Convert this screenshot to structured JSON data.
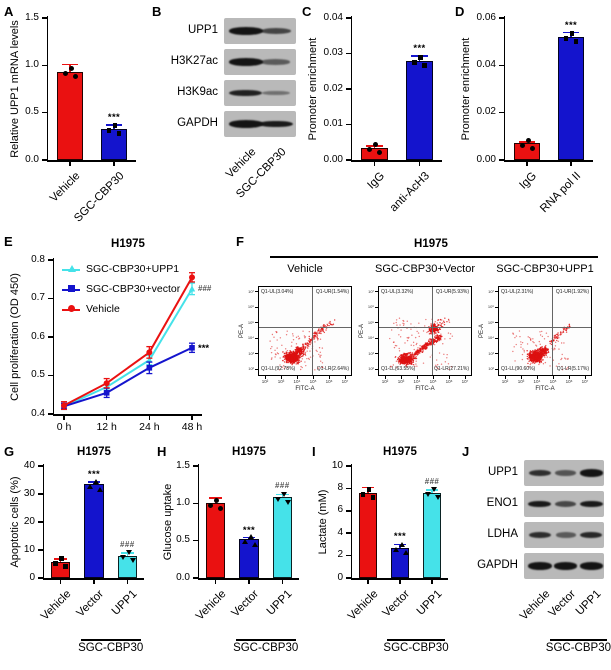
{
  "panels": {
    "A": "A",
    "B": "B",
    "C": "C",
    "D": "D",
    "E": "E",
    "F": "F",
    "G": "G",
    "H": "H",
    "I": "I",
    "J": "J"
  },
  "colors": {
    "red": "#ea1111",
    "blue": "#1414cd",
    "cyan": "#45e2e9",
    "sig": "#000000",
    "hash": "#555555",
    "blot_bg": "#b9b9b9",
    "band": "#141414",
    "flow_dot": "#dd1111",
    "axis": "#000000"
  },
  "chart_data": [
    {
      "panel": "A",
      "type": "bar",
      "title": "",
      "ylabel": "Relative UPP1 mRNA levels",
      "categories": [
        "Vehicle",
        "SGC-CBP30"
      ],
      "values": [
        0.93,
        0.33
      ],
      "errors": [
        0.08,
        0.04
      ],
      "bar_colors": [
        "red",
        "blue"
      ],
      "markers": [
        "circle",
        "square"
      ],
      "ylim": [
        0,
        1.5
      ],
      "yticks": [
        0,
        0.5,
        1,
        1.5
      ],
      "ytick_labels": [
        "0.0",
        "0.5",
        "1.0",
        "1.5"
      ],
      "sig": [
        "",
        "***"
      ]
    },
    {
      "panel": "C",
      "type": "bar",
      "title": "",
      "ylabel": "Promoter enrichment",
      "categories": [
        "IgG",
        "anti-AcH3"
      ],
      "values": [
        0.0035,
        0.028
      ],
      "errors": [
        0.0005,
        0.0013
      ],
      "bar_colors": [
        "red",
        "blue"
      ],
      "markers": [
        "circle",
        "square"
      ],
      "ylim": [
        0,
        0.04
      ],
      "yticks": [
        0,
        0.01,
        0.02,
        0.03,
        0.04
      ],
      "ytick_labels": [
        "0.00",
        "0.01",
        "0.02",
        "0.03",
        "0.04"
      ],
      "sig": [
        "",
        "***"
      ]
    },
    {
      "panel": "D",
      "type": "bar",
      "title": "",
      "ylabel": "Promoter enrichment",
      "categories": [
        "IgG",
        "RNA pol II"
      ],
      "values": [
        0.007,
        0.052
      ],
      "errors": [
        0.0007,
        0.0018
      ],
      "bar_colors": [
        "red",
        "blue"
      ],
      "markers": [
        "circle",
        "square"
      ],
      "ylim": [
        0,
        0.06
      ],
      "yticks": [
        0,
        0.02,
        0.04,
        0.06
      ],
      "ytick_labels": [
        "0.00",
        "0.02",
        "0.04",
        "0.06"
      ],
      "sig": [
        "",
        "***"
      ]
    },
    {
      "panel": "E",
      "type": "line",
      "title": "H1975",
      "ylabel": "Cell proliferation (OD 450)",
      "x": [
        "0 h",
        "12 h",
        "24 h",
        "48 h"
      ],
      "series": [
        {
          "name": "SGC-CBP30+UPP1",
          "color": "cyan",
          "marker": "triangle",
          "values": [
            0.42,
            0.47,
            0.54,
            0.725
          ],
          "errors": [
            0.008,
            0.01,
            0.012,
            0.015
          ],
          "sig": "###"
        },
        {
          "name": "SGC-CBP30+vector",
          "color": "blue",
          "marker": "square",
          "values": [
            0.42,
            0.455,
            0.52,
            0.572
          ],
          "errors": [
            0.008,
            0.012,
            0.015,
            0.012
          ],
          "sig": "***"
        },
        {
          "name": "Vehicle",
          "color": "red",
          "marker": "circle",
          "values": [
            0.422,
            0.48,
            0.56,
            0.755
          ],
          "errors": [
            0.01,
            0.012,
            0.015,
            0.012
          ],
          "sig": ""
        }
      ],
      "ylim": [
        0.4,
        0.8
      ],
      "yticks": [
        0.4,
        0.5,
        0.6,
        0.7,
        0.8
      ],
      "ytick_labels": [
        "0.4",
        "0.5",
        "0.6",
        "0.7",
        "0.8"
      ],
      "legend_position": "top-left"
    },
    {
      "panel": "G",
      "type": "bar",
      "title": "H1975",
      "ylabel": "Apoptotic cells (%)",
      "categories": [
        "Vehicle",
        "Vector",
        "UPP1"
      ],
      "values": [
        5.8,
        33.5,
        8.0
      ],
      "errors": [
        1.0,
        0.8,
        0.9
      ],
      "bar_colors": [
        "red",
        "blue",
        "cyan"
      ],
      "markers": [
        "square",
        "triangle-up",
        "triangle-down"
      ],
      "ylim": [
        0,
        40
      ],
      "yticks": [
        0,
        10,
        20,
        30,
        40
      ],
      "ytick_labels": [
        "0",
        "10",
        "20",
        "30",
        "40"
      ],
      "sig": [
        "",
        "***",
        "###"
      ],
      "group_label": "SGC-CBP30",
      "group_range": [
        1,
        2
      ]
    },
    {
      "panel": "H",
      "type": "bar",
      "title": "H1975",
      "ylabel": "Glucose uptake",
      "categories": [
        "Vehicle",
        "Vector",
        "UPP1"
      ],
      "values": [
        1.0,
        0.52,
        1.08
      ],
      "errors": [
        0.07,
        0.02,
        0.04
      ],
      "bar_colors": [
        "red",
        "blue",
        "cyan"
      ],
      "markers": [
        "circle",
        "triangle-up",
        "triangle-down"
      ],
      "ylim": [
        0,
        1.5
      ],
      "yticks": [
        0,
        0.5,
        1,
        1.5
      ],
      "ytick_labels": [
        "0.0",
        "0.5",
        "1.0",
        "1.5"
      ],
      "sig": [
        "",
        "***",
        "###"
      ],
      "group_label": "SGC-CBP30",
      "group_range": [
        1,
        2
      ]
    },
    {
      "panel": "I",
      "type": "bar",
      "title": "H1975",
      "ylabel": "Lactate (mM)",
      "categories": [
        "Vehicle",
        "Vector",
        "UPP1"
      ],
      "values": [
        7.6,
        2.7,
        7.6
      ],
      "errors": [
        0.5,
        0.3,
        0.25
      ],
      "bar_colors": [
        "red",
        "blue",
        "cyan"
      ],
      "markers": [
        "square",
        "triangle-up",
        "triangle-down"
      ],
      "ylim": [
        0,
        10
      ],
      "yticks": [
        0,
        2,
        4,
        6,
        8,
        10
      ],
      "ytick_labels": [
        "0",
        "2",
        "4",
        "6",
        "8",
        "10"
      ],
      "sig": [
        "",
        "***",
        "###"
      ],
      "group_label": "SGC-CBP30",
      "group_range": [
        1,
        2
      ]
    },
    {
      "panel": "F",
      "type": "flow-cytometry",
      "title": "H1975",
      "xlabel": "FITC-A",
      "ylabel": "PE-A",
      "x_ticks": [
        "10²",
        "10³",
        "10⁴",
        "10⁵",
        "10⁶",
        "10⁷"
      ],
      "y_ticks": [
        "10⁷",
        "10⁶",
        "10⁵",
        "10⁴",
        "10³",
        "10²"
      ],
      "plots": [
        {
          "name": "Vehicle",
          "quadrants": {
            "UL": "Q1-UL(3.04%)",
            "UR": "Q1-UR(1.54%)",
            "LL": "Q1-LL(92.78%)",
            "LR": "Q1-LR(2.64%)"
          }
        },
        {
          "name": "SGC-CBP30+Vector",
          "quadrants": {
            "UL": "Q1-UL(3.32%)",
            "UR": "Q1-UR(5.93%)",
            "LL": "Q1-LL(63.55%)",
            "LR": "Q1-LR(27.21%)"
          }
        },
        {
          "name": "SGC-CBP30+UPP1",
          "quadrants": {
            "UL": "Q1-UL(2.31%)",
            "UR": "Q1-UR(1.92%)",
            "LL": "Q1-LL(90.60%)",
            "LR": "Q1-LR(5.17%)"
          }
        }
      ]
    }
  ],
  "blots": {
    "B": {
      "targets": [
        "UPP1",
        "H3K27ac",
        "H3K9ac",
        "GAPDH"
      ],
      "lanes": [
        "Vehicle",
        "SGC-CBP30"
      ],
      "band_intensity": [
        [
          1.0,
          0.62
        ],
        [
          1.0,
          0.45
        ],
        [
          0.9,
          0.28
        ],
        [
          1.0,
          0.95
        ]
      ],
      "group_label": ""
    },
    "J": {
      "targets": [
        "UPP1",
        "ENO1",
        "LDHA",
        "GAPDH"
      ],
      "lanes": [
        "Vehicle",
        "Vector",
        "UPP1"
      ],
      "band_intensity": [
        [
          0.8,
          0.5,
          1.0
        ],
        [
          0.95,
          0.6,
          0.95
        ],
        [
          0.8,
          0.45,
          0.85
        ],
        [
          1.0,
          1.0,
          1.0
        ]
      ],
      "group_label": "SGC-CBP30",
      "group_range": [
        1,
        2
      ]
    }
  }
}
